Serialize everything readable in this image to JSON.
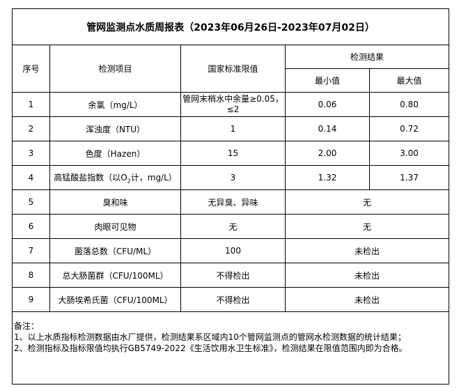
{
  "title": "管网监测点水质周报表（2023年06月26日-2023年07月02日）",
  "headers": {
    "index": "序号",
    "item": "检测项目",
    "standard": "国家标准限值",
    "result": "检测结果",
    "min": "最小值",
    "max": "最大值"
  },
  "rows": [
    {
      "index": "1",
      "item": "余氯（mg/L）",
      "standard": "管网末梢水中余量≥0.05，≤2",
      "min": "0.06",
      "max": "0.80"
    },
    {
      "index": "2",
      "item": "浑浊度（NTU）",
      "standard": "1",
      "min": "0.14",
      "max": "0.72"
    },
    {
      "index": "3",
      "item": "色度（Hazen）",
      "standard": "15",
      "min": "2.00",
      "max": "3.00"
    },
    {
      "index": "4",
      "item_prefix": "高锰酸盐指数（以O",
      "item_sub": "2",
      "item_suffix": "计，mg/L）",
      "standard": "3",
      "min": "1.32",
      "max": "1.37"
    },
    {
      "index": "5",
      "item": "臭和味",
      "standard": "无异臭、异味",
      "result": "无"
    },
    {
      "index": "6",
      "item": "肉眼可见物",
      "standard": "无",
      "result": "无"
    },
    {
      "index": "7",
      "item": "菌落总数（CFU/ML）",
      "standard": "100",
      "result": "未检出"
    },
    {
      "index": "8",
      "item": "总大肠菌群（CFU/100ML）",
      "standard": "不得检出",
      "result": "未检出"
    },
    {
      "index": "9",
      "item": "大肠埃希氏菌（CFU/100ML）",
      "standard": "不得检出",
      "result": "未检出"
    }
  ],
  "notes": {
    "label": "备注：",
    "lines": [
      "1、以上水质指标检测数据由水厂提供，检测结果系区域内10个管网监测点的管网水检测数据的统计结果；",
      "2、检测指标及指标限值均执行GB5749-2022《生活饮用水卫生标准》，检测结果在限值范围内即为合格。"
    ]
  }
}
